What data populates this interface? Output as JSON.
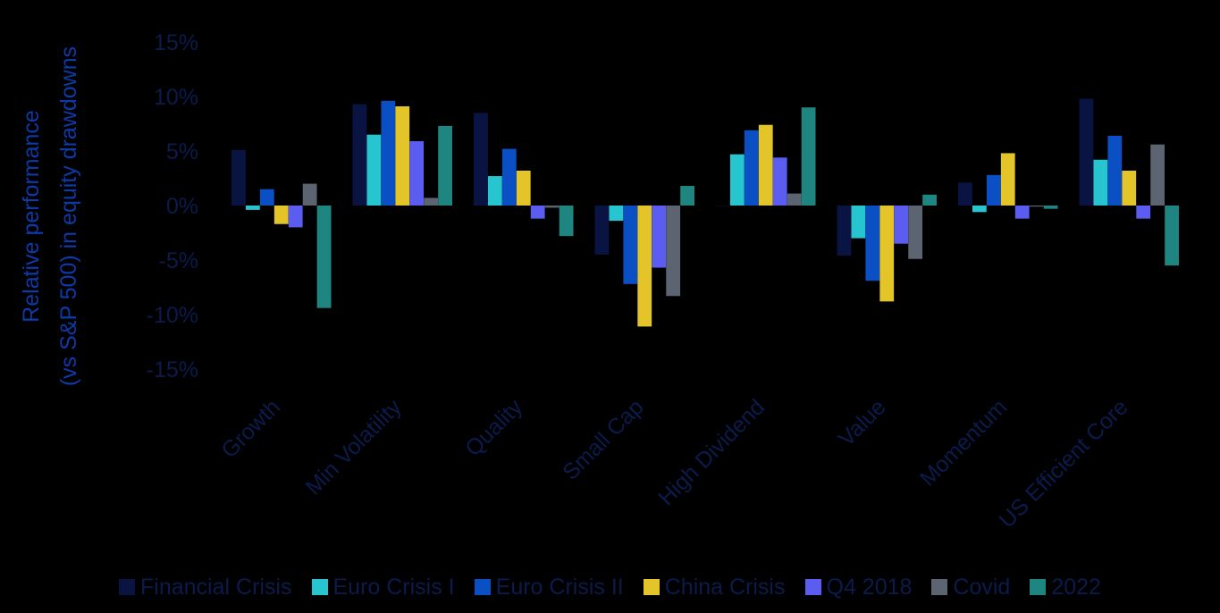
{
  "chart_data": {
    "type": "bar",
    "title": "",
    "xlabel": "",
    "ylabel": "Relative performance (vs S&P 500) in equity drawdowns",
    "ylabel_lines": [
      "Relative performance",
      "(vs S&P 500) in equity drawdowns"
    ],
    "ylim": [
      -15,
      15
    ],
    "yticks": [
      15,
      10,
      5,
      0,
      -5,
      -10,
      -15
    ],
    "ytick_labels": [
      "15%",
      "10%",
      "5%",
      "0%",
      "-5%",
      "-10%",
      "-15%"
    ],
    "grid": false,
    "legend_position": "bottom",
    "categories": [
      "Growth",
      "Min Volatility",
      "Quality",
      "Small Cap",
      "High Dividend",
      "Value",
      "Momentum",
      "US Efficient Core"
    ],
    "series": [
      {
        "name": "Financial Crisis",
        "color": "#0a1442",
        "values": [
          5.1,
          9.3,
          8.5,
          -4.5,
          0.0,
          -4.6,
          2.1,
          9.8
        ]
      },
      {
        "name": "Euro Crisis I",
        "color": "#27c5cf",
        "values": [
          -0.4,
          6.5,
          2.7,
          -1.4,
          4.7,
          -3.0,
          -0.6,
          4.2
        ]
      },
      {
        "name": "Euro Crisis II",
        "color": "#0b4fc4",
        "values": [
          1.5,
          9.6,
          5.2,
          -7.2,
          6.9,
          -6.9,
          2.8,
          6.4
        ]
      },
      {
        "name": "China Crisis",
        "color": "#e3c52a",
        "values": [
          -1.7,
          9.1,
          3.2,
          -11.1,
          7.4,
          -8.8,
          4.8,
          3.2
        ]
      },
      {
        "name": "Q4 2018",
        "color": "#5a5df0",
        "values": [
          -2.0,
          5.9,
          -1.2,
          -5.7,
          4.4,
          -3.5,
          -1.2,
          -1.2
        ]
      },
      {
        "name": "Covid",
        "color": "#5b6470",
        "values": [
          2.0,
          0.7,
          -0.2,
          -8.3,
          1.1,
          -4.9,
          -0.1,
          5.6
        ]
      },
      {
        "name": "2022",
        "color": "#1f8580",
        "values": [
          -9.4,
          7.3,
          -2.8,
          1.8,
          9.0,
          1.0,
          -0.3,
          -5.5
        ]
      }
    ]
  }
}
